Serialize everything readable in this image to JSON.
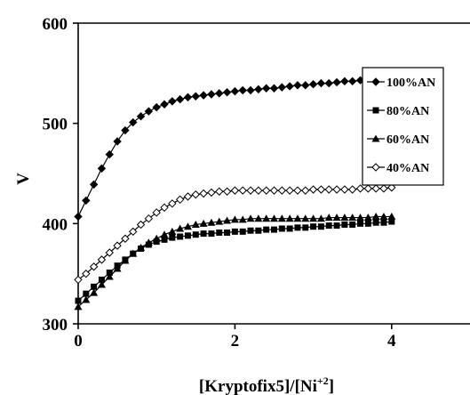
{
  "chart_data": {
    "type": "line",
    "title": "",
    "xlabel_main": "[Kryptofix5]/[Ni",
    "xlabel_sup": "+2",
    "xlabel_end": "]",
    "ylabel": "V",
    "xlim": [
      0,
      5
    ],
    "ylim": [
      300,
      600
    ],
    "xticks": [
      0,
      2,
      4
    ],
    "yticks": [
      300,
      400,
      500,
      600
    ],
    "grid": false,
    "legend_position": "right",
    "series": [
      {
        "name": "100%AN",
        "marker": "diamond-filled",
        "x": [
          0,
          0.1,
          0.2,
          0.3,
          0.4,
          0.5,
          0.6,
          0.7,
          0.8,
          0.9,
          1.0,
          1.1,
          1.2,
          1.3,
          1.4,
          1.5,
          1.6,
          1.7,
          1.8,
          1.9,
          2.0,
          2.1,
          2.2,
          2.3,
          2.4,
          2.5,
          2.6,
          2.7,
          2.8,
          2.9,
          3.0,
          3.1,
          3.2,
          3.3,
          3.4,
          3.5,
          3.6,
          3.7,
          3.8,
          3.9,
          4.0
        ],
        "y": [
          407,
          423,
          439,
          455,
          469,
          482,
          493,
          501,
          507,
          512,
          516,
          519,
          522,
          524,
          526,
          527,
          528,
          529,
          530,
          531,
          532,
          533,
          533,
          534,
          535,
          535,
          536,
          537,
          538,
          538,
          539,
          540,
          540,
          541,
          542,
          542,
          543,
          543,
          544,
          545,
          546
        ]
      },
      {
        "name": "80%AN",
        "marker": "square-filled",
        "x": [
          0,
          0.1,
          0.2,
          0.3,
          0.4,
          0.5,
          0.6,
          0.7,
          0.8,
          0.9,
          1.0,
          1.1,
          1.2,
          1.3,
          1.4,
          1.5,
          1.6,
          1.7,
          1.8,
          1.9,
          2.0,
          2.1,
          2.2,
          2.3,
          2.4,
          2.5,
          2.6,
          2.7,
          2.8,
          2.9,
          3.0,
          3.1,
          3.2,
          3.3,
          3.4,
          3.5,
          3.6,
          3.7,
          3.8,
          3.9,
          4.0
        ],
        "y": [
          323,
          330,
          337,
          344,
          351,
          358,
          364,
          370,
          375,
          379,
          382,
          384,
          386,
          387,
          388,
          389,
          390,
          390,
          391,
          391,
          392,
          392,
          393,
          393,
          394,
          394,
          395,
          395,
          396,
          396,
          397,
          397,
          398,
          398,
          399,
          399,
          400,
          400,
          401,
          401,
          402
        ]
      },
      {
        "name": "60%AN",
        "marker": "triangle-filled",
        "x": [
          0,
          0.1,
          0.2,
          0.3,
          0.4,
          0.5,
          0.6,
          0.7,
          0.8,
          0.9,
          1.0,
          1.1,
          1.2,
          1.3,
          1.4,
          1.5,
          1.6,
          1.7,
          1.8,
          1.9,
          2.0,
          2.1,
          2.2,
          2.3,
          2.4,
          2.5,
          2.6,
          2.7,
          2.8,
          2.9,
          3.0,
          3.1,
          3.2,
          3.3,
          3.4,
          3.5,
          3.6,
          3.7,
          3.8,
          3.9,
          4.0
        ],
        "y": [
          317,
          324,
          331,
          339,
          347,
          355,
          363,
          370,
          376,
          381,
          385,
          389,
          392,
          395,
          397,
          399,
          400,
          401,
          402,
          403,
          404,
          404,
          405,
          405,
          405,
          405,
          405,
          405,
          405,
          405,
          405,
          405,
          406,
          406,
          406,
          406,
          406,
          406,
          407,
          407,
          407
        ]
      },
      {
        "name": "40%AN",
        "marker": "diamond-open",
        "x": [
          0,
          0.1,
          0.2,
          0.3,
          0.4,
          0.5,
          0.6,
          0.7,
          0.8,
          0.9,
          1.0,
          1.1,
          1.2,
          1.3,
          1.4,
          1.5,
          1.6,
          1.7,
          1.8,
          1.9,
          2.0,
          2.1,
          2.2,
          2.3,
          2.4,
          2.5,
          2.6,
          2.7,
          2.8,
          2.9,
          3.0,
          3.1,
          3.2,
          3.3,
          3.4,
          3.5,
          3.6,
          3.7,
          3.8,
          3.9,
          4.0
        ],
        "y": [
          344,
          350,
          357,
          364,
          371,
          378,
          385,
          392,
          399,
          405,
          411,
          416,
          420,
          424,
          427,
          429,
          430,
          431,
          432,
          432,
          433,
          433,
          433,
          433,
          433,
          433,
          433,
          433,
          433,
          433,
          434,
          434,
          434,
          434,
          434,
          434,
          435,
          435,
          435,
          435,
          436
        ]
      }
    ]
  }
}
